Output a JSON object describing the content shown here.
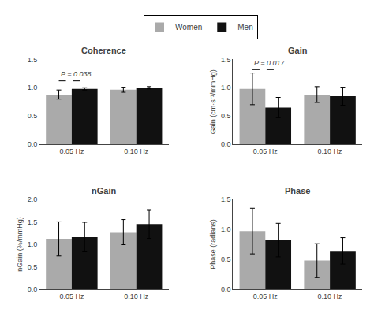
{
  "chart_data": [
    {
      "type": "bar",
      "title": "Coherence",
      "categories": [
        "0.05 Hz",
        "0.10 Hz"
      ],
      "series": [
        {
          "name": "Women",
          "color": "#aaaaaa",
          "values": [
            0.88,
            0.965
          ],
          "errors": [
            0.08,
            0.045
          ]
        },
        {
          "name": "Men",
          "color": "#111111",
          "values": [
            0.98,
            1.0
          ],
          "errors": [
            0.02,
            0.02
          ]
        }
      ],
      "ylim": [
        0,
        1.5
      ],
      "yticks": [
        {
          "value": 0.0,
          "label": "0.0"
        },
        0.5,
        {
          "value": 1.0,
          "label": "1.0"
        },
        1.5
      ],
      "grid": false,
      "legend": "top",
      "annotations": [
        {
          "text": "P = 0.038",
          "category": "0.05 Hz",
          "y": 1.14,
          "line_y": 1.12
        }
      ]
    },
    {
      "type": "bar",
      "title": "Gain",
      "ylabel": "Gain (cm·s⁻¹/mmHg)",
      "categories": [
        "0.05 Hz",
        "0.10 Hz"
      ],
      "series": [
        {
          "name": "Women",
          "color": "#aaaaaa",
          "values": [
            0.98,
            0.88
          ],
          "errors": [
            0.28,
            0.14
          ]
        },
        {
          "name": "Men",
          "color": "#111111",
          "values": [
            0.65,
            0.85
          ],
          "errors": [
            0.18,
            0.16
          ]
        }
      ],
      "ylim": [
        0,
        1.5
      ],
      "yticks": [
        {
          "value": 0.0,
          "label": "0.0"
        },
        0.5,
        {
          "value": 1.0,
          "label": "1.0"
        },
        1.5
      ],
      "grid": false,
      "annotations": [
        {
          "text": "P = 0.017",
          "category": "0.05 Hz",
          "y": 1.34,
          "line_y": 1.32
        }
      ]
    },
    {
      "type": "bar",
      "title": "nGain",
      "ylabel": "nGain (%/mmHg)",
      "categories": [
        "0.05 Hz",
        "0.10 Hz"
      ],
      "series": [
        {
          "name": "Women",
          "color": "#aaaaaa",
          "values": [
            1.12,
            1.27
          ],
          "errors": [
            0.38,
            0.28
          ]
        },
        {
          "name": "Men",
          "color": "#111111",
          "values": [
            1.17,
            1.45
          ],
          "errors": [
            0.32,
            0.32
          ]
        }
      ],
      "ylim": [
        0,
        2.0
      ],
      "yticks": [
        {
          "value": 0.0,
          "label": "0.0"
        },
        0.5,
        {
          "value": 1.0,
          "label": "1.0"
        },
        1.5,
        {
          "value": 2.0,
          "label": "2.0"
        }
      ],
      "grid": false
    },
    {
      "type": "bar",
      "title": "Phase",
      "ylabel": "Phase (radians)",
      "categories": [
        "0.05 Hz",
        "0.10 Hz"
      ],
      "series": [
        {
          "name": "Women",
          "color": "#aaaaaa",
          "values": [
            0.97,
            0.48
          ],
          "errors": [
            0.38,
            0.28
          ]
        },
        {
          "name": "Men",
          "color": "#111111",
          "values": [
            0.82,
            0.64
          ],
          "errors": [
            0.28,
            0.22
          ]
        }
      ],
      "ylim": [
        0,
        1.5
      ],
      "yticks": [
        {
          "value": 0.0,
          "label": "0.0"
        },
        0.5,
        {
          "value": 1.0,
          "label": "1.0"
        },
        1.5
      ],
      "grid": false
    }
  ]
}
